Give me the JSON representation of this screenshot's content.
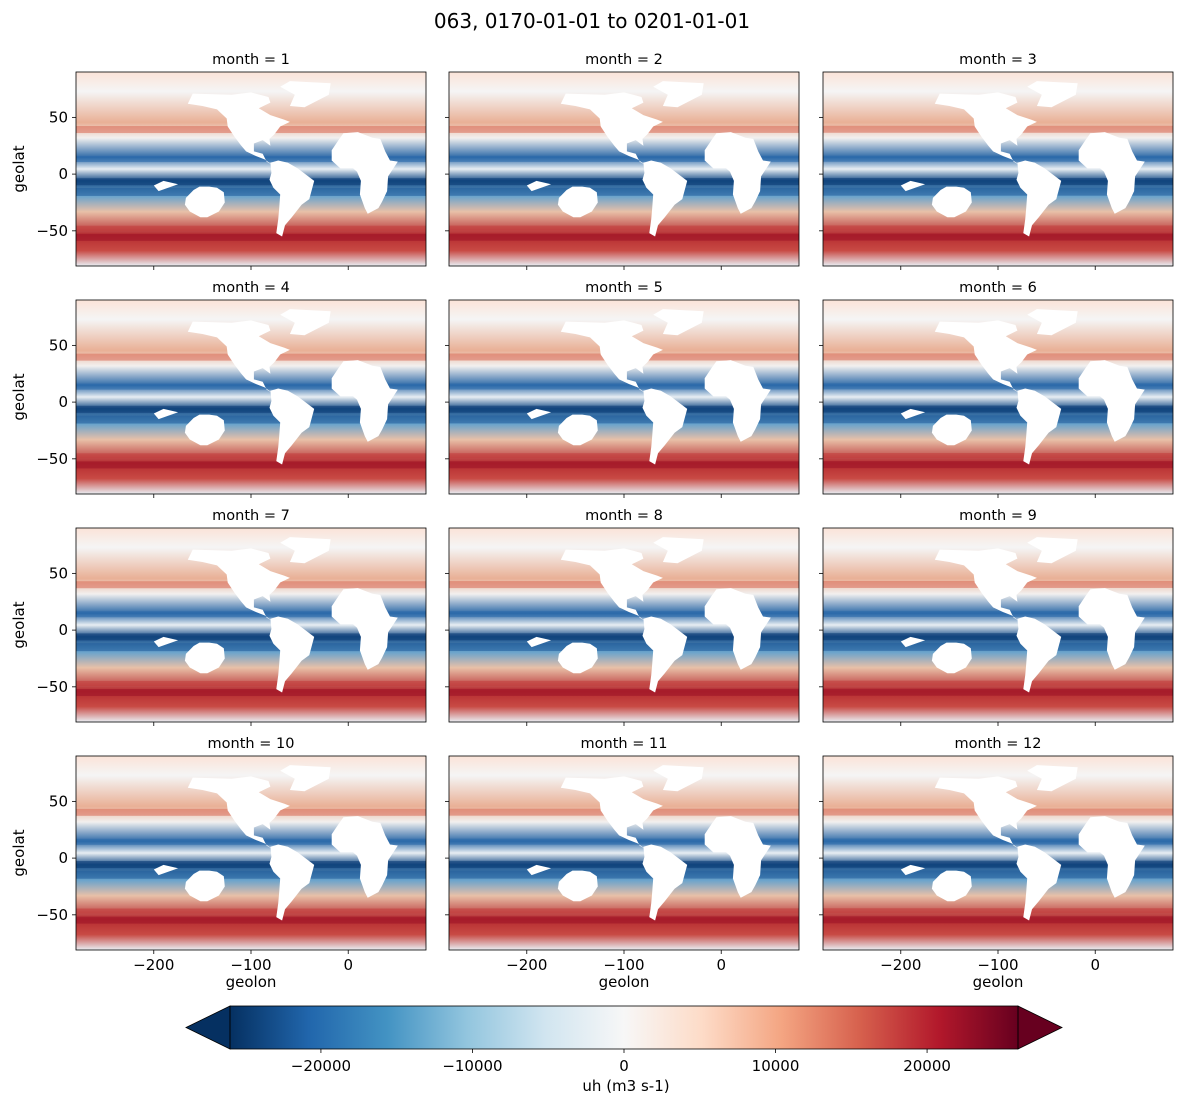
{
  "figure": {
    "suptitle": "063, 0170-01-01 to 0201-01-01"
  },
  "chart_data": {
    "type": "heatmap",
    "colormap": "RdBu_r",
    "panels": [
      {
        "title": "month = 1"
      },
      {
        "title": "month = 2"
      },
      {
        "title": "month = 3"
      },
      {
        "title": "month = 4"
      },
      {
        "title": "month = 5"
      },
      {
        "title": "month = 6"
      },
      {
        "title": "month = 7"
      },
      {
        "title": "month = 8"
      },
      {
        "title": "month = 9"
      },
      {
        "title": "month = 10"
      },
      {
        "title": "month = 11"
      },
      {
        "title": "month = 12"
      }
    ],
    "xlabel": "geolon",
    "ylabel": "geolat",
    "xlim": [
      -280,
      80
    ],
    "ylim": [
      -81,
      90
    ],
    "xticks": [
      -200,
      -100,
      0
    ],
    "xtick_labels": [
      "−200",
      "−100",
      "0"
    ],
    "yticks": [
      50,
      0,
      -50
    ],
    "ytick_labels": [
      "50",
      "0",
      "−50"
    ],
    "colorbar": {
      "label": "uh (m3 s-1)",
      "vmin": -26000,
      "vmax": 26000,
      "extend": "both",
      "ticks": [
        -20000,
        -10000,
        0,
        10000,
        20000
      ],
      "tick_labels": [
        "−20000",
        "−10000",
        "0",
        "10000",
        "20000"
      ],
      "colors": [
        "#053061",
        "#2166ac",
        "#4393c3",
        "#92c5de",
        "#d1e5f0",
        "#f7f7f7",
        "#fddbc7",
        "#f4a582",
        "#d6604d",
        "#b2182b",
        "#67001f"
      ]
    }
  }
}
